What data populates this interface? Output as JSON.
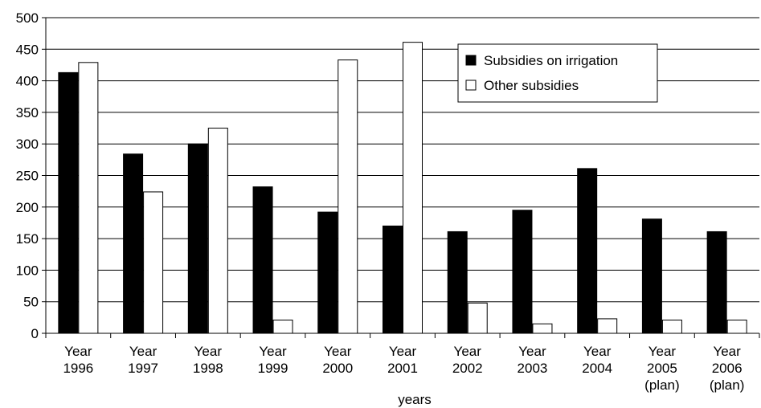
{
  "chart_data": {
    "type": "bar",
    "categories": [
      [
        "Year",
        "1996"
      ],
      [
        "Year",
        "1997"
      ],
      [
        "Year",
        "1998"
      ],
      [
        "Year",
        "1999"
      ],
      [
        "Year",
        "2000"
      ],
      [
        "Year",
        "2001"
      ],
      [
        "Year",
        "2002"
      ],
      [
        "Year",
        "2003"
      ],
      [
        "Year",
        "2004"
      ],
      [
        "Year",
        "2005",
        "(plan)"
      ],
      [
        "Year",
        "2006",
        "(plan)"
      ]
    ],
    "series": [
      {
        "name": "Subsidies on irrigation",
        "color": "#000000",
        "values": [
          413,
          284,
          300,
          232,
          192,
          170,
          161,
          195,
          261,
          181,
          161
        ]
      },
      {
        "name": "Other subsidies",
        "color": "#ffffff",
        "values": [
          429,
          224,
          325,
          21,
          433,
          461,
          48,
          15,
          23,
          21,
          21
        ]
      }
    ],
    "title": "",
    "xlabel": "years",
    "ylabel": "",
    "ylim": [
      0,
      500
    ],
    "yticks": [
      0,
      50,
      100,
      150,
      200,
      250,
      300,
      350,
      400,
      450,
      500
    ],
    "grid": true,
    "legend_position": "top-right"
  }
}
